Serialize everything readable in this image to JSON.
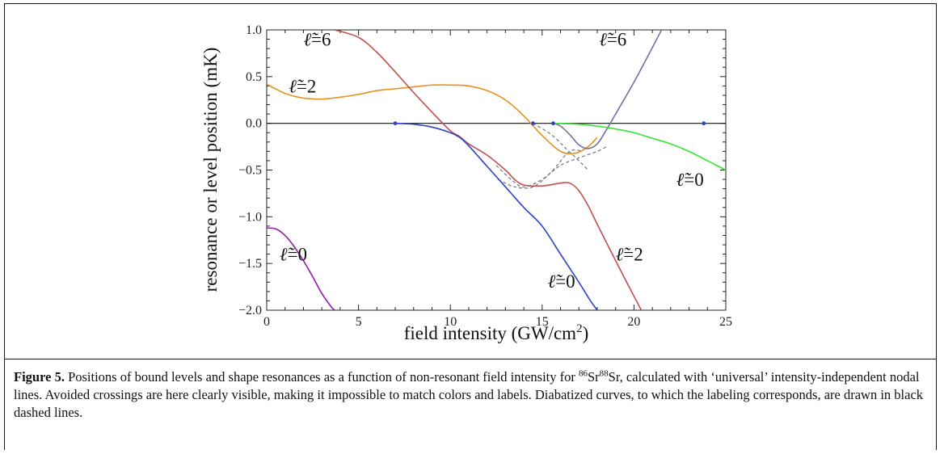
{
  "figure": {
    "caption_label": "Figure 5.",
    "caption_segments": [
      {
        "t": " Positions of bound levels and shape resonances as a function of non-resonant field intensity for "
      },
      {
        "t": "86",
        "sup": true
      },
      {
        "t": "Sr"
      },
      {
        "t": "88",
        "sup": true
      },
      {
        "t": "Sr, calculated with ‘universal’ intensity-independent nodal lines. Avoided crossings are here clearly visible, making it impossible to match colors and labels. Diabatized curves, to which the labeling corresponds, are drawn in black dashed lines."
      }
    ]
  },
  "chart_data": {
    "type": "line",
    "xlabel": "field intensity (GW/cm",
    "xlabel_sup": "2",
    "xlabel_close": ")",
    "ylabel": "resonance or level position (mK)",
    "xlim": [
      0,
      25
    ],
    "ylim": [
      -2.0,
      1.0
    ],
    "x_ticks": [
      0,
      5,
      10,
      15,
      20,
      25
    ],
    "x_tick_labels": [
      "0",
      "5",
      "10",
      "15",
      "20",
      "25"
    ],
    "y_ticks": [
      1.0,
      0.5,
      0.0,
      -0.5,
      -1.0,
      -1.5,
      -2.0
    ],
    "y_tick_labels": [
      "1.0",
      "0.5",
      "0.0",
      "−0.5",
      "−1.0",
      "−1.5",
      "−2.0"
    ],
    "grid": false,
    "zero_line": true,
    "series": [
      {
        "color": "#e8911e",
        "x": [
          0,
          1,
          2,
          3,
          4,
          5,
          6,
          7,
          8,
          9,
          10,
          11,
          12,
          13,
          14,
          15,
          16,
          16.8,
          17.5,
          18
        ],
        "y": [
          0.42,
          0.32,
          0.27,
          0.26,
          0.28,
          0.31,
          0.35,
          0.37,
          0.39,
          0.41,
          0.41,
          0.4,
          0.35,
          0.25,
          0.08,
          -0.13,
          -0.3,
          -0.32,
          -0.25,
          -0.15
        ]
      },
      {
        "color": "#c0504d",
        "x": [
          3.7,
          5,
          6,
          7,
          8,
          9,
          10,
          10.5,
          11,
          12,
          13,
          13.5,
          14,
          15,
          16,
          16.5,
          17,
          17.5,
          18,
          19,
          20,
          20.4
        ],
        "y": [
          1.0,
          0.92,
          0.76,
          0.55,
          0.33,
          0.12,
          -0.08,
          -0.14,
          -0.22,
          -0.34,
          -0.5,
          -0.6,
          -0.66,
          -0.67,
          -0.64,
          -0.64,
          -0.72,
          -0.88,
          -1.08,
          -1.47,
          -1.85,
          -2.0
        ]
      },
      {
        "color": "#2e43c8",
        "x": [
          7,
          8,
          9,
          10,
          10.5,
          11,
          12,
          13,
          14,
          15,
          16,
          17,
          17.6,
          18
        ],
        "y": [
          0.0,
          -0.01,
          -0.04,
          -0.1,
          -0.15,
          -0.24,
          -0.46,
          -0.68,
          -0.9,
          -1.1,
          -1.4,
          -1.7,
          -1.89,
          -2.0
        ]
      },
      {
        "color": "#7070a8",
        "x": [
          15.6,
          16,
          16.5,
          17,
          17.5,
          18,
          18.5,
          19,
          20,
          21,
          21.5
        ],
        "y": [
          0.0,
          -0.03,
          -0.12,
          -0.23,
          -0.27,
          -0.22,
          -0.07,
          0.1,
          0.44,
          0.81,
          1.0
        ]
      },
      {
        "color": "#32e632",
        "x": [
          15.6,
          17,
          18,
          19,
          20,
          21,
          22,
          23,
          24,
          25
        ],
        "y": [
          0.0,
          -0.01,
          -0.03,
          -0.06,
          -0.1,
          -0.16,
          -0.22,
          -0.3,
          -0.4,
          -0.5
        ]
      },
      {
        "color": "#8e1ea6",
        "x": [
          0,
          0.5,
          1,
          1.5,
          2,
          2.5,
          3,
          3.5,
          3.7
        ],
        "y": [
          -1.12,
          -1.13,
          -1.2,
          -1.32,
          -1.47,
          -1.64,
          -1.82,
          -1.96,
          -2.0
        ]
      }
    ],
    "dashed_series": [
      {
        "color": "#777777",
        "x": [
          12.5,
          13.3,
          14,
          15,
          16,
          17,
          18,
          18.5
        ],
        "y": [
          -0.45,
          -0.6,
          -0.68,
          -0.6,
          -0.45,
          -0.37,
          -0.3,
          -0.25
        ]
      },
      {
        "color": "#777777",
        "x": [
          12.6,
          13.5,
          14.5,
          15.5,
          16.5,
          17.2
        ],
        "y": [
          -0.6,
          -0.68,
          -0.68,
          -0.52,
          -0.3,
          -0.3
        ]
      },
      {
        "color": "#777777",
        "x": [
          14.5,
          15.5,
          16.3,
          17,
          17.5
        ],
        "y": [
          0.0,
          -0.12,
          -0.27,
          -0.4,
          -0.5
        ]
      }
    ],
    "points": {
      "color": "#2e43c8",
      "x": [
        7,
        14.5,
        15.6,
        23.8
      ],
      "y": [
        0.0,
        0.0,
        0.0,
        0.0
      ]
    },
    "curve_labels": [
      {
        "base": "ℓ̃",
        "eq": "=2",
        "x": 1.2,
        "y": 0.33
      },
      {
        "base": "ℓ̃",
        "eq": "=6",
        "x": 2.0,
        "y": 0.83
      },
      {
        "base": "ℓ̃",
        "eq": "=6",
        "x": 18.1,
        "y": 0.83
      },
      {
        "base": "ℓ̃",
        "eq": "=0",
        "x": 22.3,
        "y": -0.67
      },
      {
        "base": "ℓ̃",
        "eq": "=0",
        "x": 0.7,
        "y": -1.47
      },
      {
        "base": "ℓ̃",
        "eq": "=2",
        "x": 19.0,
        "y": -1.47
      },
      {
        "base": "ℓ̃",
        "eq": "=0",
        "x": 15.3,
        "y": -1.76
      }
    ]
  }
}
